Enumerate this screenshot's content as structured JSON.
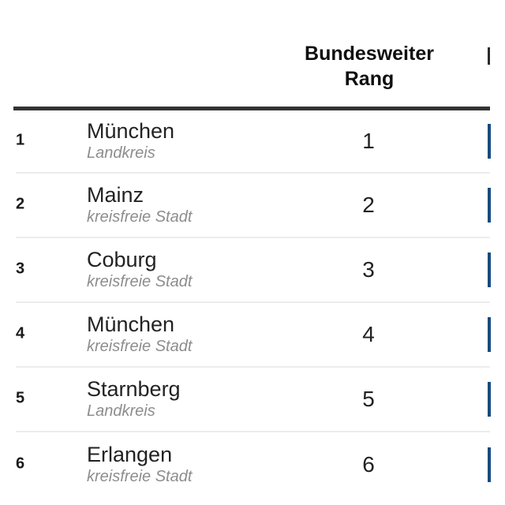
{
  "header": {
    "rank_column_label": "Bundesweiter Rang"
  },
  "rows": [
    {
      "pos": "1",
      "name": "München",
      "type": "Landkreis",
      "rank": "1"
    },
    {
      "pos": "2",
      "name": "Mainz",
      "type": "kreisfreie Stadt",
      "rank": "2"
    },
    {
      "pos": "3",
      "name": "Coburg",
      "type": "kreisfreie Stadt",
      "rank": "3"
    },
    {
      "pos": "4",
      "name": "München",
      "type": "kreisfreie Stadt",
      "rank": "4"
    },
    {
      "pos": "5",
      "name": "Starnberg",
      "type": "Landkreis",
      "rank": "5"
    },
    {
      "pos": "6",
      "name": "Erlangen",
      "type": "kreisfreie Stadt",
      "rank": "6"
    }
  ],
  "colors": {
    "accent_blue": "#174b7e",
    "header_rule": "#343434",
    "row_separator": "#ececec",
    "subtitle_gray": "#8d8d8d",
    "text_dark": "#222222"
  },
  "chart_data": {
    "type": "table",
    "columns": [
      "position",
      "name",
      "district_type",
      "Bundesweiter Rang"
    ],
    "rows": [
      {
        "position": 1,
        "name": "München",
        "district_type": "Landkreis",
        "bundesweiter_rang": 1
      },
      {
        "position": 2,
        "name": "Mainz",
        "district_type": "kreisfreie Stadt",
        "bundesweiter_rang": 2
      },
      {
        "position": 3,
        "name": "Coburg",
        "district_type": "kreisfreie Stadt",
        "bundesweiter_rang": 3
      },
      {
        "position": 4,
        "name": "München",
        "district_type": "kreisfreie Stadt",
        "bundesweiter_rang": 4
      },
      {
        "position": 5,
        "name": "Starnberg",
        "district_type": "Landkreis",
        "bundesweiter_rang": 5
      },
      {
        "position": 6,
        "name": "Erlangen",
        "district_type": "kreisfreie Stadt",
        "bundesweiter_rang": 6
      }
    ],
    "layout": {
      "grid": "horizontal row separators",
      "header_rule": "thick dark line",
      "right_column_truncated": true
    }
  }
}
